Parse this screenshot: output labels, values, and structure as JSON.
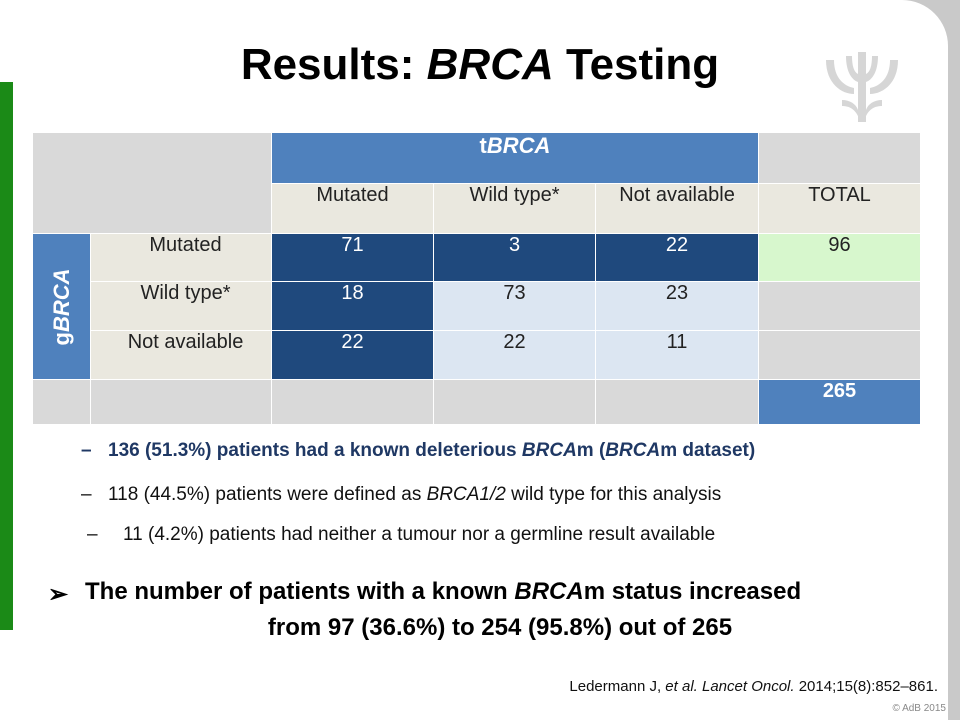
{
  "title": {
    "pre": "Results: ",
    "italic": "BRCA",
    "post": " Testing"
  },
  "table": {
    "tbrca": {
      "pre": "t",
      "italic": "BRCA"
    },
    "gbrca": {
      "pre": "g",
      "italic": "BRCA"
    },
    "col_headers": [
      "Mutated",
      "Wild type*",
      "Not available",
      "TOTAL"
    ],
    "rows": [
      {
        "label": "Mutated",
        "values": [
          "71",
          "3",
          "22"
        ],
        "total": "96"
      },
      {
        "label": "Wild type*",
        "values": [
          "18",
          "73",
          "23"
        ],
        "total": ""
      },
      {
        "label": "Not available",
        "values": [
          "22",
          "22",
          "11"
        ],
        "total": ""
      }
    ],
    "grand_total": "265"
  },
  "bullets": {
    "b1": {
      "dash": "–",
      "a": "136 (51.3%) patients had a known deleterious ",
      "i1": "BRCA",
      "b": "m (",
      "i2": "BRCA",
      "c": "m dataset)"
    },
    "b2": {
      "dash": "–",
      "a": "118 (44.5%) patients were defined as ",
      "i1": "BRCA1/2",
      "b": " wild type for this analysis"
    },
    "b3": {
      "dash": "–",
      "a": "11 (4.2%) patients had neither a tumour nor a germline result available"
    }
  },
  "conclusion": {
    "arrow": "➢",
    "line1_a": "The number of patients with a known ",
    "line1_i": "BRCA",
    "line1_b": "m status increased",
    "line2": "from 97 (36.6%) to 254 (95.8%) out of 265"
  },
  "reference": {
    "a": "Ledermann J, ",
    "i1": "et al. Lancet Oncol.",
    "b": " 2014;15(8):852–861."
  },
  "copyright": "© AdB 2015",
  "colors": {
    "green_bar": "#1b8a17",
    "dark_blue": "#1f497d",
    "mid_blue": "#4f81bd",
    "light_blue": "#dce6f2",
    "total_green": "#d7f7cd"
  }
}
